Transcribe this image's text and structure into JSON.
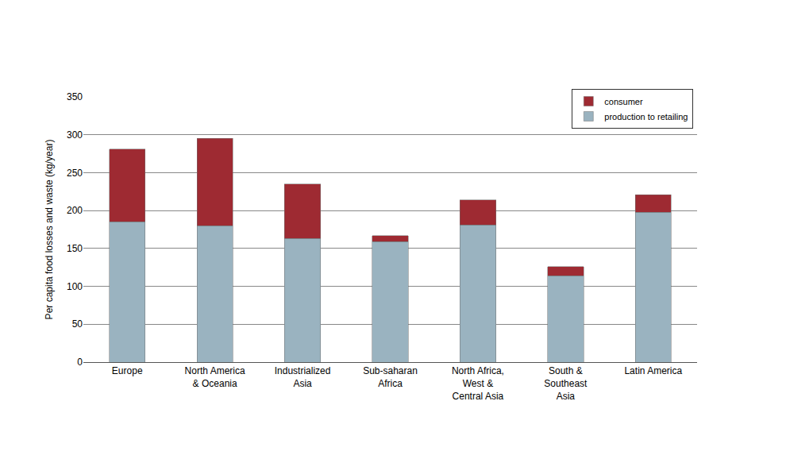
{
  "chart_data": {
    "type": "bar",
    "stacked": true,
    "y_label": "Per capita food losses and waste (kg/year)",
    "categories": [
      "Europe",
      "North America & Oceania",
      "Industrialized Asia",
      "Sub-saharan Africa",
      "North Africa, West & Central Asia",
      "South & Southeast Asia",
      "Latin America"
    ],
    "series": [
      {
        "name": "production to retailing",
        "color": "#9ab3c0",
        "values": [
          185,
          180,
          163,
          159,
          181,
          114,
          198
        ]
      },
      {
        "name": "consumer",
        "color": "#9e2a32",
        "values": [
          96,
          115,
          72,
          8,
          33,
          12,
          23
        ]
      }
    ],
    "ylim": [
      0,
      350
    ],
    "yticks": [
      0,
      50,
      100,
      150,
      200,
      250,
      300,
      350
    ],
    "grid": true,
    "legend": "top right"
  }
}
